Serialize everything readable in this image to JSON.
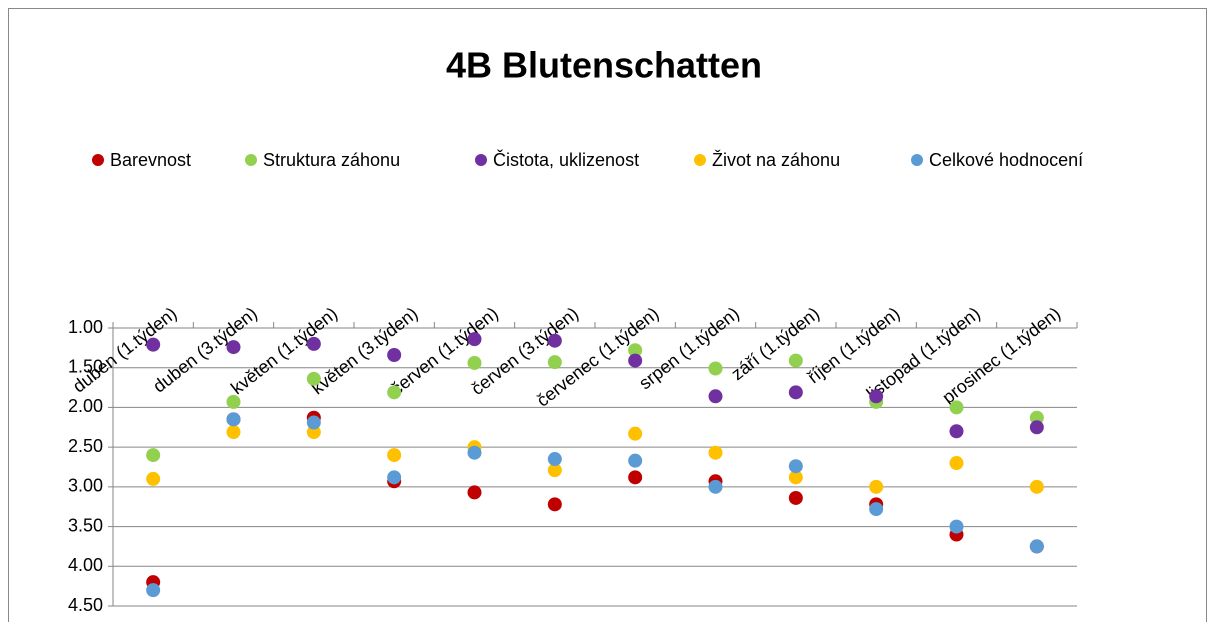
{
  "chart_data": {
    "type": "scatter",
    "title": "4B  Blutenschatten",
    "categories": [
      "duben (1.týden)",
      "duben (3.týden)",
      "květen (1.týden)",
      "květen (3.týden)",
      "červen (1.týden)",
      "červen (3.týden)",
      "červenec (1.týden)",
      "srpen (1.týden)",
      "září (1.týden)",
      "říjen (1.týden)",
      "listopad (1.týden)",
      "prosinec (1.týden)"
    ],
    "series": [
      {
        "name": "Barevnost",
        "color": "#c00000",
        "values": [
          4.2,
          2.15,
          2.13,
          2.93,
          3.07,
          3.22,
          2.88,
          2.93,
          3.14,
          3.22,
          3.6,
          3.75
        ]
      },
      {
        "name": "Struktura záhonu",
        "color": "#92d050",
        "values": [
          2.6,
          1.93,
          1.64,
          1.81,
          1.44,
          1.43,
          1.28,
          1.51,
          1.41,
          1.93,
          2.0,
          2.13
        ]
      },
      {
        "name": "Čistota, uklizenost",
        "color": "#7030a0",
        "values": [
          1.21,
          1.24,
          1.2,
          1.34,
          1.14,
          1.16,
          1.41,
          1.86,
          1.81,
          1.86,
          2.3,
          2.25
        ]
      },
      {
        "name": "Život na záhonu",
        "color": "#ffc000",
        "values": [
          2.9,
          2.31,
          2.31,
          2.6,
          2.5,
          2.79,
          2.33,
          2.57,
          2.88,
          3.0,
          2.7,
          3.0
        ]
      },
      {
        "name": "Celkové hodnocení",
        "color": "#5b9bd5",
        "values": [
          4.3,
          2.15,
          2.19,
          2.88,
          2.57,
          2.65,
          2.67,
          3.0,
          2.74,
          3.28,
          3.5,
          3.75
        ]
      }
    ],
    "ylim": [
      1,
      4.5
    ],
    "y_reversed": true,
    "yticks": [
      {
        "value": 1,
        "label": "1.00"
      },
      {
        "value": 1.5,
        "label": "1.50"
      },
      {
        "value": 2,
        "label": "2.00"
      },
      {
        "value": 2.5,
        "label": "2.50"
      },
      {
        "value": 3,
        "label": "3.00"
      },
      {
        "value": 3.5,
        "label": "3.50"
      },
      {
        "value": 4,
        "label": "4.00"
      },
      {
        "value": 4.5,
        "label": "4.50"
      }
    ],
    "grid": true,
    "legend": "top"
  }
}
